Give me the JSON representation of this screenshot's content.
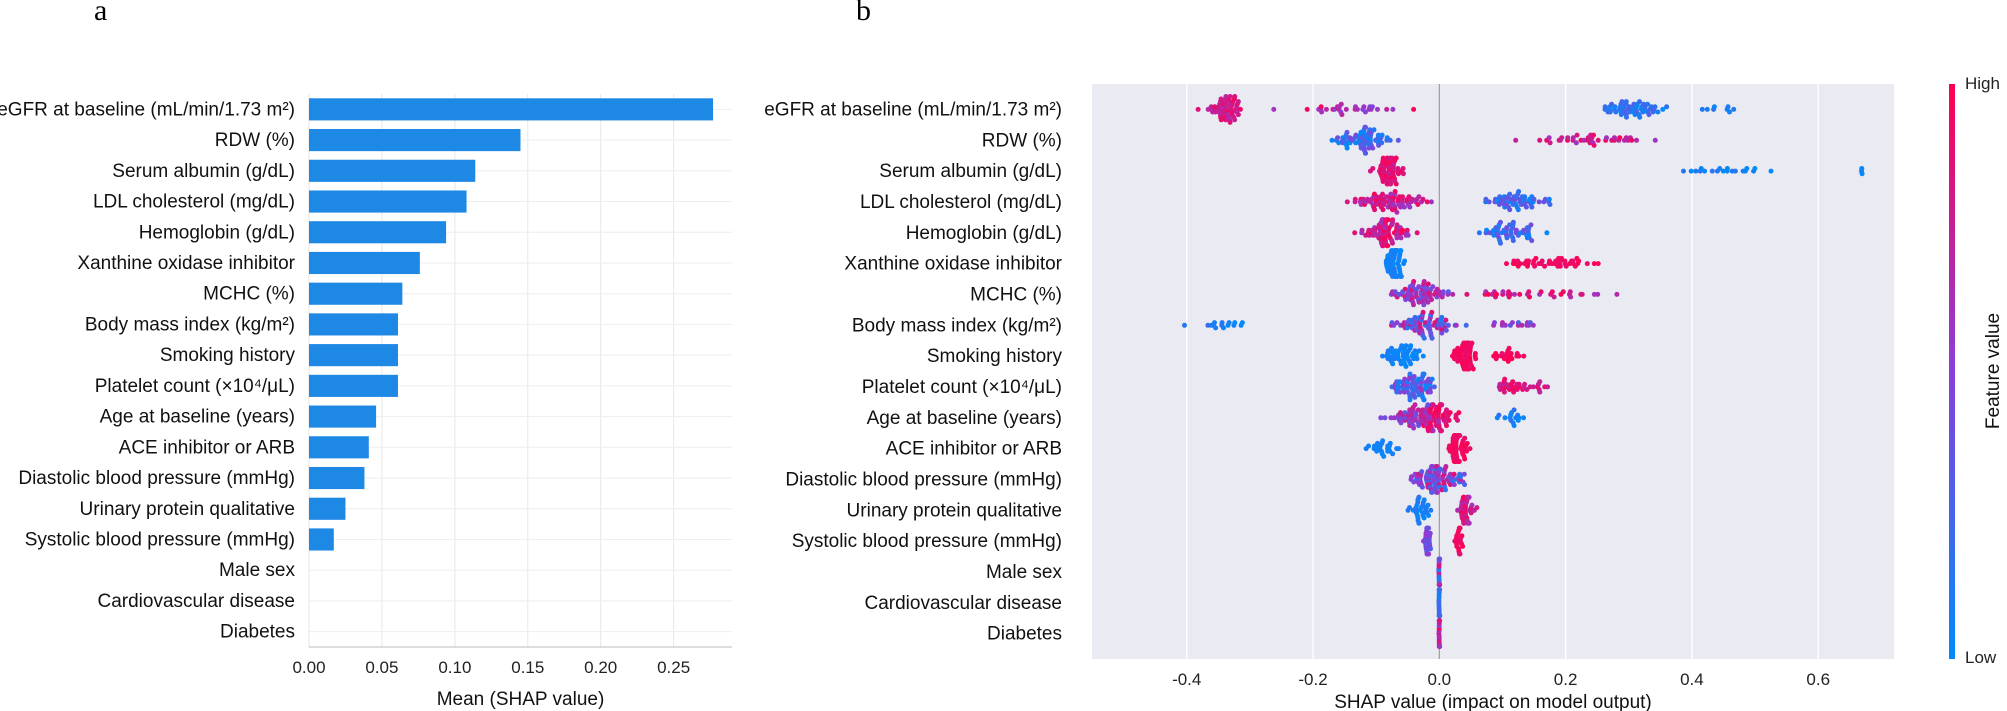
{
  "panel_labels": {
    "a": "a",
    "b": "b"
  },
  "colors": {
    "bar": "#1E88E5",
    "high": "#FF0052",
    "low": "#008BFB",
    "plot_bg": "#EAEAF2",
    "grid": "#FFFFFF"
  },
  "chart_data": [
    {
      "type": "bar",
      "orientation": "horizontal",
      "title": "",
      "xlabel": "Mean (SHAP value)",
      "ylabel": "",
      "xlim": [
        0,
        0.29
      ],
      "xticks": [
        "0.00",
        "0.05",
        "0.10",
        "0.15",
        "0.20",
        "0.25"
      ],
      "grid": true,
      "categories": [
        "eGFR at baseline (mL/min/1.73 m²)",
        "RDW (%)",
        "Serum albumin (g/dL)",
        "LDL cholesterol (mg/dL)",
        "Hemoglobin (g/dL)",
        "Xanthine oxidase inhibitor",
        "MCHC (%)",
        "Body mass index (kg/m²)",
        "Smoking history",
        "Platelet count (×10⁴/μL)",
        "Age at baseline (years)",
        "ACE inhibitor or ARB",
        "Diastolic blood pressure (mmHg)",
        "Urinary protein qualitative",
        "Systolic blood pressure (mmHg)",
        "Male sex",
        "Cardiovascular disease",
        "Diabetes"
      ],
      "values": [
        0.277,
        0.145,
        0.114,
        0.108,
        0.094,
        0.076,
        0.064,
        0.061,
        0.061,
        0.061,
        0.046,
        0.041,
        0.038,
        0.025,
        0.017,
        0,
        0,
        0
      ]
    },
    {
      "type": "scatter",
      "subtype": "beeswarm",
      "title": "",
      "xlabel": "SHAP value (impact on model output)",
      "ylabel": "",
      "xlim": [
        -0.55,
        0.72
      ],
      "xticks": [
        "-0.4",
        "-0.2",
        "0.0",
        "0.2",
        "0.4",
        "0.6"
      ],
      "colorbar": {
        "label": "Feature value",
        "high": "High",
        "low": "Low"
      },
      "categories": [
        "eGFR at baseline (mL/min/1.73 m²)",
        "RDW (%)",
        "Serum albumin (g/dL)",
        "LDL cholesterol (mg/dL)",
        "Hemoglobin (g/dL)",
        "Xanthine oxidase inhibitor",
        "MCHC (%)",
        "Body mass index (kg/m²)",
        "Smoking history",
        "Platelet count (×10⁴/μL)",
        "Age at baseline (years)",
        "ACE inhibitor or ARB",
        "Diastolic blood pressure (mmHg)",
        "Urinary protein qualitative",
        "Systolic blood pressure (mmHg)",
        "Male sex",
        "Cardiovascular disease",
        "Diabetes"
      ],
      "series": [
        {
          "name": "eGFR at baseline (mL/min/1.73 m²)",
          "groups": [
            {
              "center": -0.34,
              "spread": 0.05,
              "count": 55,
              "color": [
                0.65,
                0.95
              ]
            },
            {
              "center": -0.15,
              "spread": 0.15,
              "count": 30,
              "color": [
                0.45,
                1.0
              ]
            },
            {
              "center": 0.3,
              "spread": 0.08,
              "count": 55,
              "color": [
                0.0,
                0.3
              ]
            },
            {
              "center": 0.46,
              "spread": 0.08,
              "count": 8,
              "color": [
                0.0,
                0.2
              ]
            }
          ]
        },
        {
          "name": "RDW (%)",
          "groups": [
            {
              "center": -0.12,
              "spread": 0.07,
              "count": 70,
              "color": [
                0.0,
                0.45
              ]
            },
            {
              "center": 0.25,
              "spread": 0.14,
              "count": 40,
              "color": [
                0.55,
                1.0
              ]
            }
          ]
        },
        {
          "name": "Serum albumin (g/dL)",
          "groups": [
            {
              "center": -0.08,
              "spread": 0.035,
              "count": 55,
              "color": [
                0.75,
                1.0
              ]
            },
            {
              "center": 0.45,
              "spread": 0.14,
              "count": 20,
              "color": [
                0.0,
                0.15
              ]
            },
            {
              "center": 0.67,
              "spread": 0.005,
              "count": 3,
              "color": [
                0.0,
                0.05
              ]
            }
          ]
        },
        {
          "name": "LDL cholesterol (mg/dL)",
          "groups": [
            {
              "center": -0.08,
              "spread": 0.09,
              "count": 75,
              "color": [
                0.55,
                1.0
              ]
            },
            {
              "center": 0.12,
              "spread": 0.08,
              "count": 55,
              "color": [
                0.0,
                0.45
              ]
            }
          ]
        },
        {
          "name": "Hemoglobin (g/dL)",
          "groups": [
            {
              "center": -0.09,
              "spread": 0.07,
              "count": 75,
              "color": [
                0.55,
                1.0
              ]
            },
            {
              "center": 0.11,
              "spread": 0.07,
              "count": 50,
              "color": [
                0.0,
                0.45
              ]
            }
          ]
        },
        {
          "name": "Xanthine oxidase inhibitor",
          "groups": [
            {
              "center": -0.07,
              "spread": 0.025,
              "count": 60,
              "color": [
                0.0,
                0.1
              ]
            },
            {
              "center": 0.17,
              "spread": 0.11,
              "count": 45,
              "color": [
                0.9,
                1.0
              ]
            }
          ]
        },
        {
          "name": "MCHC (%)",
          "groups": [
            {
              "center": -0.03,
              "spread": 0.07,
              "count": 70,
              "color": [
                0.3,
                0.9
              ]
            },
            {
              "center": 0.15,
              "spread": 0.14,
              "count": 35,
              "color": [
                0.6,
                1.0
              ]
            }
          ]
        },
        {
          "name": "Body mass index (kg/m²)",
          "groups": [
            {
              "center": -0.02,
              "spread": 0.07,
              "count": 70,
              "color": [
                0.1,
                0.9
              ]
            },
            {
              "center": -0.34,
              "spread": 0.1,
              "count": 15,
              "color": [
                0.0,
                0.2
              ]
            },
            {
              "center": 0.12,
              "spread": 0.06,
              "count": 15,
              "color": [
                0.3,
                0.8
              ]
            }
          ]
        },
        {
          "name": "Smoking history",
          "groups": [
            {
              "center": -0.06,
              "spread": 0.05,
              "count": 50,
              "color": [
                0.0,
                0.1
              ]
            },
            {
              "center": 0.04,
              "spread": 0.03,
              "count": 60,
              "color": [
                0.9,
                1.0
              ]
            },
            {
              "center": 0.11,
              "spread": 0.04,
              "count": 20,
              "color": [
                0.9,
                1.0
              ]
            }
          ]
        },
        {
          "name": "Platelet count (×10⁴/μL)",
          "groups": [
            {
              "center": -0.04,
              "spread": 0.06,
              "count": 70,
              "color": [
                0.0,
                0.6
              ]
            },
            {
              "center": 0.13,
              "spread": 0.06,
              "count": 35,
              "color": [
                0.7,
                1.0
              ]
            }
          ]
        },
        {
          "name": "Age at baseline (years)",
          "groups": [
            {
              "center": -0.04,
              "spread": 0.06,
              "count": 60,
              "color": [
                0.35,
                0.8
              ]
            },
            {
              "center": 0.0,
              "spread": 0.04,
              "count": 50,
              "color": [
                0.8,
                1.0
              ]
            },
            {
              "center": 0.12,
              "spread": 0.04,
              "count": 15,
              "color": [
                0.0,
                0.2
              ]
            }
          ]
        },
        {
          "name": "ACE inhibitor or ARB",
          "groups": [
            {
              "center": -0.09,
              "spread": 0.05,
              "count": 25,
              "color": [
                0.0,
                0.1
              ]
            },
            {
              "center": 0.03,
              "spread": 0.02,
              "count": 60,
              "color": [
                0.9,
                1.0
              ]
            }
          ]
        },
        {
          "name": "Diastolic blood pressure (mmHg)",
          "groups": [
            {
              "center": 0.0,
              "spread": 0.07,
              "count": 90,
              "color": [
                0.1,
                0.9
              ]
            }
          ]
        },
        {
          "name": "Urinary protein qualitative",
          "groups": [
            {
              "center": -0.03,
              "spread": 0.025,
              "count": 30,
              "color": [
                0.0,
                0.15
              ]
            },
            {
              "center": 0.04,
              "spread": 0.02,
              "count": 35,
              "color": [
                0.6,
                1.0
              ]
            }
          ]
        },
        {
          "name": "Systolic blood pressure (mmHg)",
          "groups": [
            {
              "center": -0.02,
              "spread": 0.012,
              "count": 25,
              "color": [
                0.3,
                0.6
              ]
            },
            {
              "center": 0.03,
              "spread": 0.012,
              "count": 20,
              "color": [
                0.85,
                1.0
              ]
            }
          ]
        },
        {
          "name": "Male sex",
          "groups": [
            {
              "center": 0.0,
              "spread": 0.001,
              "count": 25,
              "color": [
                0.0,
                1.0
              ]
            }
          ]
        },
        {
          "name": "Cardiovascular disease",
          "groups": [
            {
              "center": 0.0,
              "spread": 0.001,
              "count": 25,
              "color": [
                0.0,
                0.25
              ]
            }
          ]
        },
        {
          "name": "Diabetes",
          "groups": [
            {
              "center": 0.0,
              "spread": 0.001,
              "count": 25,
              "color": [
                0.4,
                1.0
              ]
            }
          ]
        }
      ]
    }
  ]
}
